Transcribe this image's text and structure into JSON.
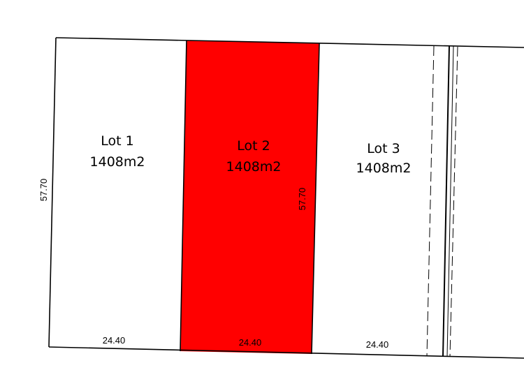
{
  "lots": [
    {
      "name": "Lot 1",
      "area": "1408m2"
    },
    {
      "name": "Lot 2",
      "area": "1408m2"
    },
    {
      "name": "Lot 3",
      "area": "1408m2"
    }
  ],
  "dimensions": {
    "depth": "57.70",
    "inner_depth": "57.70",
    "frontages": [
      "24.40",
      "24.40",
      "24.40"
    ]
  }
}
